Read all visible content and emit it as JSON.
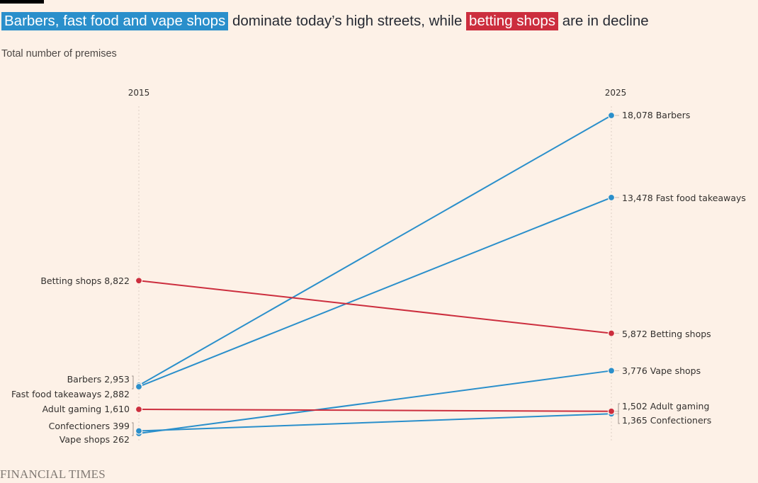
{
  "header": {
    "title_hl1": "Barbers, fast food and vape shops",
    "title_mid": " dominate today’s high streets, while ",
    "title_hl2": "betting shops",
    "title_end": " are in decline",
    "subtitle": "Total number of premises"
  },
  "footer": {
    "source": "FINANCIAL TIMES"
  },
  "colors": {
    "grow": "#2a8fcb",
    "decline": "#cc2e3e",
    "background": "#fdf1e7"
  },
  "chart_data": {
    "type": "line",
    "x": [
      "2015",
      "2025"
    ],
    "ylabel": "Total number of premises",
    "series": [
      {
        "name": "Barbers",
        "values": [
          2953,
          18078
        ],
        "trend": "grow",
        "label_start": "Barbers 2,953",
        "label_end": "18,078 Barbers"
      },
      {
        "name": "Fast food takeaways",
        "values": [
          2882,
          13478
        ],
        "trend": "grow",
        "label_start": "Fast food takeaways 2,882",
        "label_end": "13,478 Fast food takeaways"
      },
      {
        "name": "Betting shops",
        "values": [
          8822,
          5872
        ],
        "trend": "decline",
        "label_start": "Betting shops 8,822",
        "label_end": "5,872 Betting shops"
      },
      {
        "name": "Vape shops",
        "values": [
          262,
          3776
        ],
        "trend": "grow",
        "label_start": "Vape shops 262",
        "label_end": "3,776 Vape shops"
      },
      {
        "name": "Adult gaming",
        "values": [
          1610,
          1502
        ],
        "trend": "decline",
        "label_start": "Adult gaming 1,610",
        "label_end": "1,502 Adult gaming"
      },
      {
        "name": "Confectioners",
        "values": [
          399,
          1365
        ],
        "trend": "grow",
        "label_start": "Confectioners 399",
        "label_end": "1,365 Confectioners"
      }
    ]
  }
}
